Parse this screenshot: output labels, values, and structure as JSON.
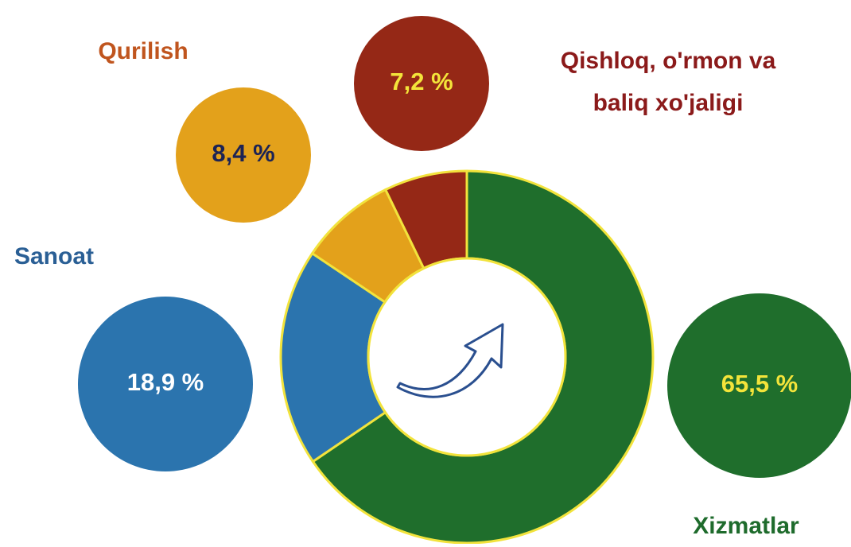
{
  "chart_data": {
    "type": "pie",
    "donut": true,
    "categories": [
      "Xizmatlar",
      "Sanoat",
      "Qurilish",
      "Qishloq, o'rmon va baliq xo'jaligi"
    ],
    "values": [
      65.5,
      18.9,
      8.4,
      7.2
    ],
    "value_labels": [
      "65,5 %",
      "18,9 %",
      "8,4 %",
      "7,2 %"
    ],
    "colors": [
      "#1f6e2c",
      "#2b74ae",
      "#e3a11b",
      "#952816"
    ]
  }
}
